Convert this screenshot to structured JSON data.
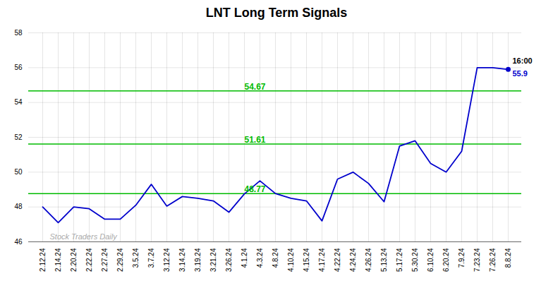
{
  "chart_data": {
    "type": "line",
    "title": "LNT Long Term Signals",
    "categories": [
      "2.12.24",
      "2.14.24",
      "2.20.24",
      "2.22.24",
      "2.27.24",
      "2.29.24",
      "3.5.24",
      "3.7.24",
      "3.12.24",
      "3.14.24",
      "3.19.24",
      "3.21.24",
      "3.26.24",
      "4.1.24",
      "4.3.24",
      "4.8.24",
      "4.10.24",
      "4.15.24",
      "4.17.24",
      "4.22.24",
      "4.24.24",
      "4.26.24",
      "5.13.24",
      "5.17.24",
      "5.30.24",
      "6.10.24",
      "6.20.24",
      "7.9.24",
      "7.23.24",
      "7.26.24",
      "8.8.24"
    ],
    "values": [
      48.0,
      47.1,
      48.0,
      47.9,
      47.3,
      47.3,
      48.1,
      49.3,
      48.05,
      48.6,
      48.5,
      48.35,
      47.7,
      48.75,
      49.5,
      48.77,
      48.5,
      48.35,
      47.2,
      49.6,
      50.0,
      49.35,
      48.3,
      51.5,
      51.8,
      50.5,
      50.0,
      51.2,
      56.0,
      56.0,
      55.9
    ],
    "color": "#0000cc",
    "reference_lines": [
      {
        "value": 48.77,
        "label": "48.77",
        "color": "#00bb00"
      },
      {
        "value": 51.61,
        "label": "51.61",
        "color": "#00bb00"
      },
      {
        "value": 54.67,
        "label": "54.67",
        "color": "#00bb00"
      }
    ],
    "annotations": [
      {
        "text": "16:00",
        "color": "#000000"
      },
      {
        "text": "55.9",
        "color": "#0000cc"
      }
    ],
    "watermark": {
      "text": "Stock Traders Daily",
      "color": "#aaaaaa"
    },
    "ylim": [
      46,
      58
    ],
    "yticks": [
      46,
      48,
      50,
      52,
      54,
      56,
      58
    ],
    "grid": true
  }
}
